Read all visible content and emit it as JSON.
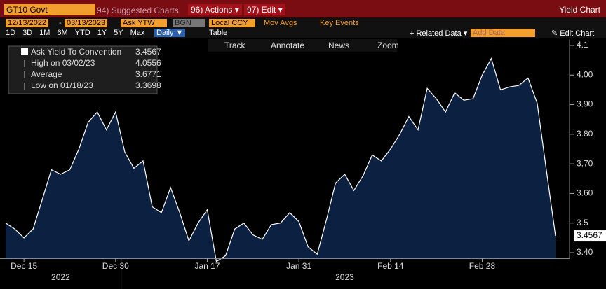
{
  "toolbar": {
    "security": "GT10 Govt",
    "suggested": "94) Suggested Charts",
    "actions": "96) Actions ▾",
    "edit": "97) Edit ▾",
    "title": "Yield Chart"
  },
  "controls": {
    "start": "12/13/2022",
    "dash": "-",
    "end": "03/13/2023",
    "field": "Ask YTW",
    "source": "BGN",
    "currency": "Local CCY",
    "mov_avgs": "Mov Avgs",
    "key_events": "Key Events"
  },
  "periods": [
    "1D",
    "3D",
    "1M",
    "6M",
    "YTD",
    "1Y",
    "5Y",
    "Max"
  ],
  "frequency": "Daily ▼",
  "table": "Table",
  "related": "+ Related Data ▾",
  "add_data": "Add Data",
  "edit_chart": "✎ Edit Chart",
  "chart_tools": [
    "Track",
    "Annotate",
    "News",
    "Zoom"
  ],
  "stats": [
    {
      "label": "High on 03/02/23",
      "value": 4.0556
    },
    {
      "label": "Average",
      "value": 3.6771
    },
    {
      "label": "Low on 01/18/23",
      "value": 3.3698
    }
  ],
  "chart_data": {
    "type": "area",
    "series": [
      {
        "name": "Ask Yield To Convention",
        "color": "#ffffff",
        "fill": "#0c2142",
        "values": [
          3.5,
          3.48,
          3.45,
          3.48,
          3.58,
          3.68,
          3.665,
          3.68,
          3.75,
          3.84,
          3.875,
          3.815,
          3.875,
          3.74,
          3.685,
          3.71,
          3.555,
          3.535,
          3.62,
          3.535,
          3.44,
          3.5,
          3.545,
          3.3698,
          3.39,
          3.48,
          3.5,
          3.46,
          3.445,
          3.495,
          3.5,
          3.535,
          3.505,
          3.42,
          3.395,
          3.51,
          3.635,
          3.665,
          3.61,
          3.66,
          3.73,
          3.71,
          3.75,
          3.8,
          3.86,
          3.815,
          3.955,
          3.92,
          3.875,
          3.94,
          3.915,
          3.92,
          4.0,
          4.0556,
          3.95,
          3.96,
          3.965,
          3.99,
          3.905,
          3.68,
          3.4567
        ]
      }
    ],
    "xlim": [
      0,
      60
    ],
    "xticks": [
      {
        "value": 2,
        "label": "Dec 15"
      },
      {
        "value": 12,
        "label": "Dec 30"
      },
      {
        "value": 22,
        "label": "Jan 17"
      },
      {
        "value": 32,
        "label": "Jan 31"
      },
      {
        "value": 42,
        "label": "Feb 14"
      },
      {
        "value": 52,
        "label": "Feb 28"
      }
    ],
    "year_labels": [
      {
        "value": 6,
        "label": "2022"
      },
      {
        "value": 37,
        "label": "2023"
      }
    ],
    "ylim": [
      3.38,
      4.12
    ],
    "yticks": [
      {
        "value": 3.4,
        "label": "3.40"
      },
      3.5,
      {
        "value": 3.6,
        "label": "3.60"
      },
      {
        "value": 3.7,
        "label": "3.70"
      },
      {
        "value": 3.8,
        "label": "3.80"
      },
      {
        "value": 3.9,
        "label": "3.90"
      },
      {
        "value": 4.0,
        "label": "4.00"
      },
      4.1
    ]
  }
}
